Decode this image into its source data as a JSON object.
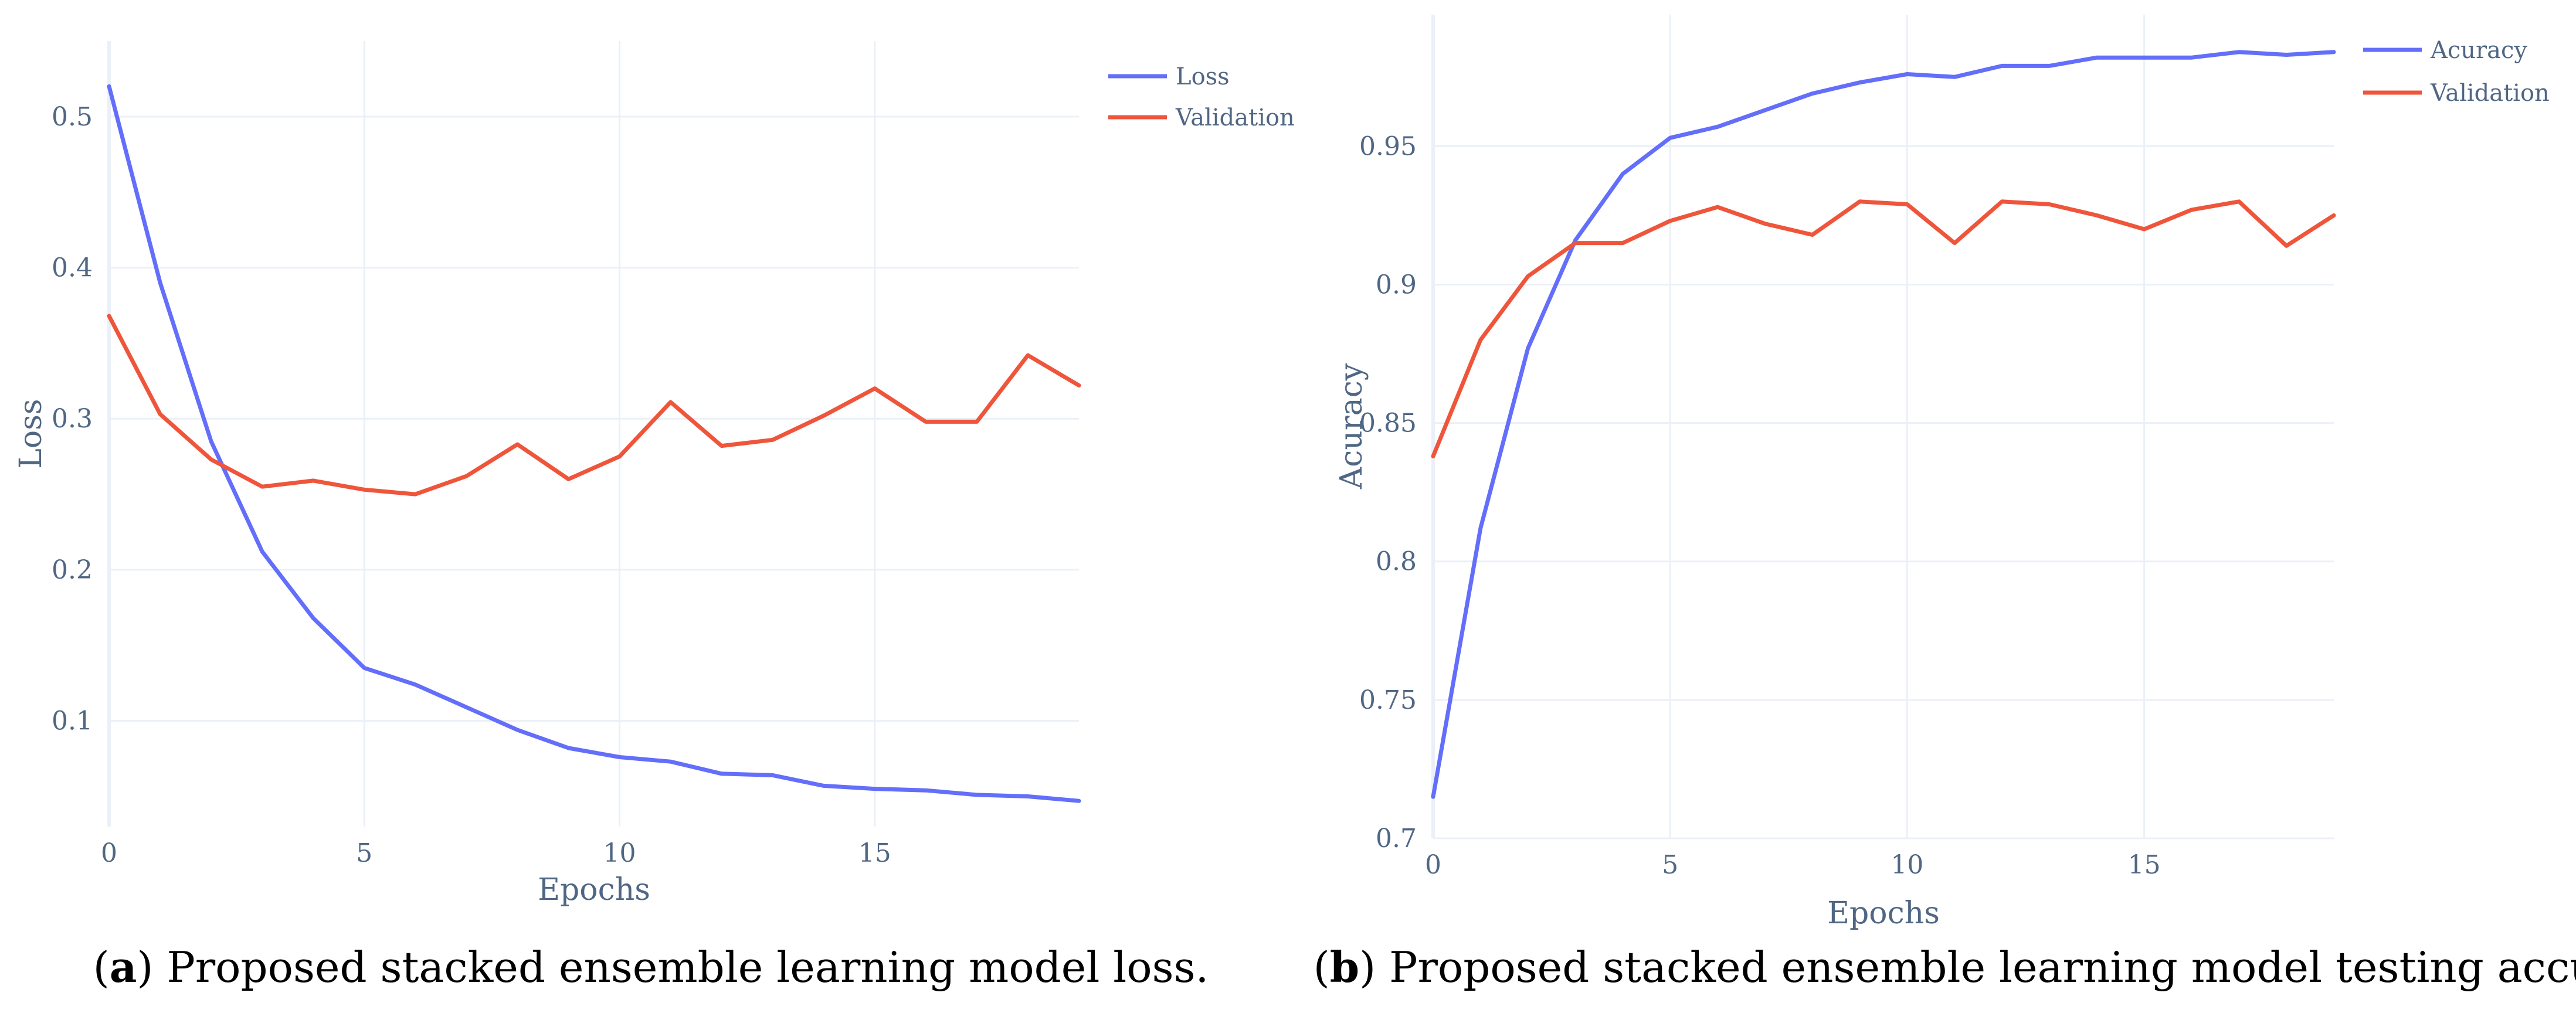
{
  "chart_data": [
    {
      "type": "line",
      "caption_letter": "a",
      "caption_text": "Proposed stacked ensemble learning model loss.",
      "xlabel": "Epochs",
      "ylabel": "Loss",
      "xlim": [
        0,
        19
      ],
      "ylim": [
        0.03,
        0.55
      ],
      "xticks": [
        0,
        5,
        10,
        15
      ],
      "yticks": [
        0.1,
        0.2,
        0.3,
        0.4,
        0.5
      ],
      "ytick_labels": [
        "0.1",
        "0.2",
        "0.3",
        "0.4",
        "0.5"
      ],
      "grid": true,
      "legend_position": "top-right",
      "x": [
        0,
        1,
        2,
        3,
        4,
        5,
        6,
        7,
        8,
        9,
        10,
        11,
        12,
        13,
        14,
        15,
        16,
        17,
        18,
        19
      ],
      "series": [
        {
          "name": "Loss",
          "color": "#636EFA",
          "values": [
            0.52,
            0.39,
            0.285,
            0.212,
            0.168,
            0.135,
            0.124,
            0.109,
            0.094,
            0.082,
            0.076,
            0.073,
            0.065,
            0.064,
            0.057,
            0.055,
            0.054,
            0.051,
            0.05,
            0.047
          ]
        },
        {
          "name": "Validation",
          "color": "#EF553B",
          "values": [
            0.368,
            0.303,
            0.273,
            0.255,
            0.259,
            0.253,
            0.25,
            0.262,
            0.283,
            0.26,
            0.275,
            0.311,
            0.282,
            0.286,
            0.302,
            0.32,
            0.298,
            0.298,
            0.342,
            0.322
          ]
        }
      ]
    },
    {
      "type": "line",
      "caption_letter": "b",
      "caption_text": "Proposed stacked ensemble learning model testing accuracy.",
      "xlabel": "Epochs",
      "ylabel": "Acuracy",
      "xlim": [
        0,
        19
      ],
      "ylim": [
        0.7,
        0.9975
      ],
      "xticks": [
        0,
        5,
        10,
        15
      ],
      "yticks": [
        0.7,
        0.75,
        0.8,
        0.85,
        0.9,
        0.95
      ],
      "ytick_labels": [
        "0.7",
        "0.75",
        "0.8",
        "0.85",
        "0.9",
        "0.95"
      ],
      "grid": true,
      "legend_position": "top-right",
      "x": [
        0,
        1,
        2,
        3,
        4,
        5,
        6,
        7,
        8,
        9,
        10,
        11,
        12,
        13,
        14,
        15,
        16,
        17,
        18,
        19
      ],
      "series": [
        {
          "name": "Acuracy",
          "color": "#636EFA",
          "values": [
            0.715,
            0.812,
            0.877,
            0.916,
            0.94,
            0.953,
            0.957,
            0.963,
            0.969,
            0.973,
            0.976,
            0.975,
            0.979,
            0.979,
            0.982,
            0.982,
            0.982,
            0.984,
            0.983,
            0.984
          ]
        },
        {
          "name": "Validation",
          "color": "#EF553B",
          "values": [
            0.838,
            0.88,
            0.903,
            0.915,
            0.915,
            0.923,
            0.928,
            0.922,
            0.918,
            0.93,
            0.929,
            0.915,
            0.93,
            0.929,
            0.925,
            0.92,
            0.927,
            0.93,
            0.914,
            0.925
          ]
        }
      ]
    }
  ]
}
